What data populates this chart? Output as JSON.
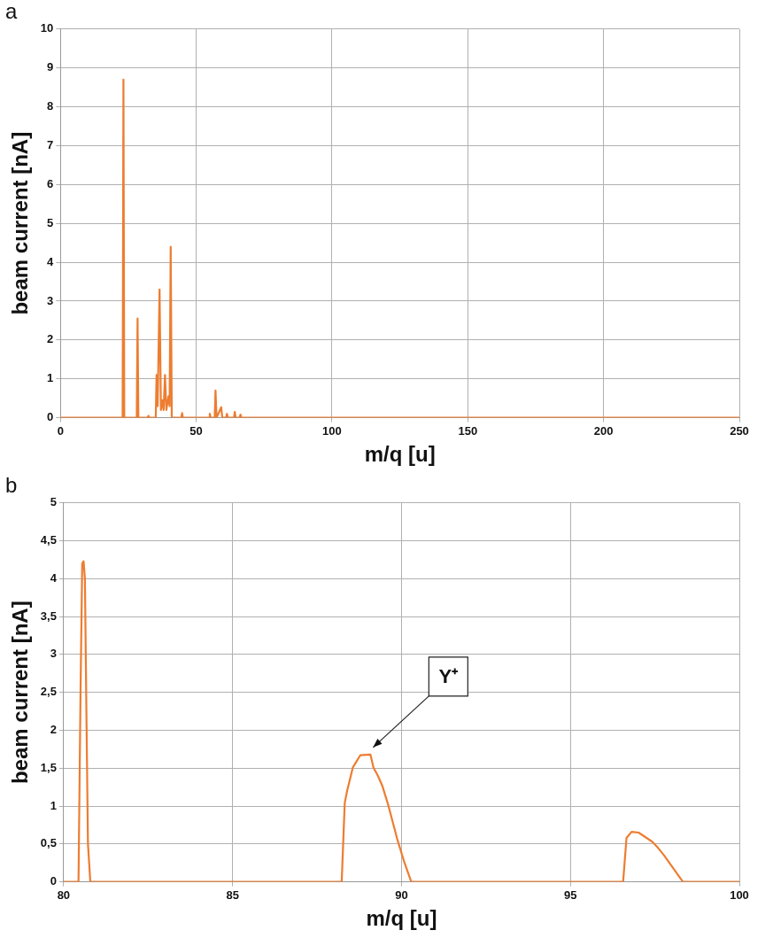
{
  "chart_data": [
    {
      "type": "line",
      "title": "a",
      "xlabel": "m/q [u]",
      "ylabel": "beam current [nA]",
      "xlim": [
        0,
        250
      ],
      "xticks": [
        0,
        50,
        100,
        150,
        200,
        250
      ],
      "ylim": [
        0,
        10
      ],
      "yticks": [
        0,
        1,
        2,
        3,
        4,
        5,
        6,
        7,
        8,
        9,
        10
      ],
      "grid": true,
      "marker": "none",
      "line_style": "solid",
      "series": [
        {
          "color": "#ed7d31",
          "x": [
            0,
            22.9,
            23.2,
            23.5,
            28.1,
            28.4,
            28.7,
            32.1,
            32.4,
            32.7,
            35.1,
            35.4,
            35.8,
            36.5,
            37.0,
            37.6,
            38.0,
            38.5,
            39.0,
            39.8,
            40.2,
            40.6,
            41.0,
            44.5,
            44.8,
            45.1,
            54.7,
            55.0,
            55.3,
            56.8,
            57.1,
            57.5,
            59.2,
            59.6,
            61.0,
            61.3,
            61.7,
            63.9,
            64.2,
            64.5,
            66.0,
            66.3,
            66.6,
            250
          ],
          "values": [
            0,
            0,
            8.7,
            0,
            0,
            2.55,
            0,
            0,
            0.05,
            0,
            0,
            1.1,
            0.3,
            3.3,
            0.2,
            0.45,
            0.2,
            1.1,
            0.2,
            0.55,
            0.3,
            4.4,
            0,
            0,
            0.12,
            0,
            0,
            0.1,
            0,
            0,
            0.7,
            0,
            0.27,
            0,
            0,
            0.1,
            0,
            0,
            0.15,
            0,
            0,
            0.08,
            0,
            0
          ]
        }
      ]
    },
    {
      "type": "line",
      "title": "b",
      "xlabel": "m/q [u]",
      "ylabel": "beam current [nA]",
      "xlim": [
        80,
        100
      ],
      "xticks": [
        80,
        85,
        90,
        95,
        100
      ],
      "ylim": [
        0,
        5
      ],
      "yticks": [
        0,
        {
          "value": 0.5,
          "label": "0,5"
        },
        1,
        {
          "value": 1.5,
          "label": "1,5"
        },
        2,
        {
          "value": 2.5,
          "label": "2,5"
        },
        3,
        {
          "value": 3.5,
          "label": "3,5"
        },
        4,
        {
          "value": 4.5,
          "label": "4,5"
        },
        5
      ],
      "grid": true,
      "marker": "none",
      "line_style": "solid",
      "annotations": [
        {
          "text": "Y⁺",
          "x": 89.08,
          "y": 1.68
        }
      ],
      "series": [
        {
          "color": "#ed7d31",
          "x": [
            80,
            80.44,
            80.5,
            80.55,
            80.59,
            80.63,
            80.68,
            80.72,
            80.79,
            88.23,
            88.32,
            88.39,
            88.56,
            88.78,
            89.08,
            89.17,
            89.3,
            89.43,
            89.61,
            89.87,
            90.09,
            90.29,
            96.56,
            96.66,
            96.81,
            97.02,
            97.42,
            97.59,
            97.77,
            98.33,
            100
          ],
          "values": [
            0,
            0,
            2.5,
            4.2,
            4.23,
            4.0,
            2.0,
            0.5,
            0,
            0,
            1.04,
            1.2,
            1.51,
            1.67,
            1.68,
            1.51,
            1.4,
            1.27,
            1.01,
            0.57,
            0.25,
            0,
            0,
            0.58,
            0.66,
            0.65,
            0.53,
            0.45,
            0.35,
            0,
            0
          ]
        }
      ]
    }
  ]
}
